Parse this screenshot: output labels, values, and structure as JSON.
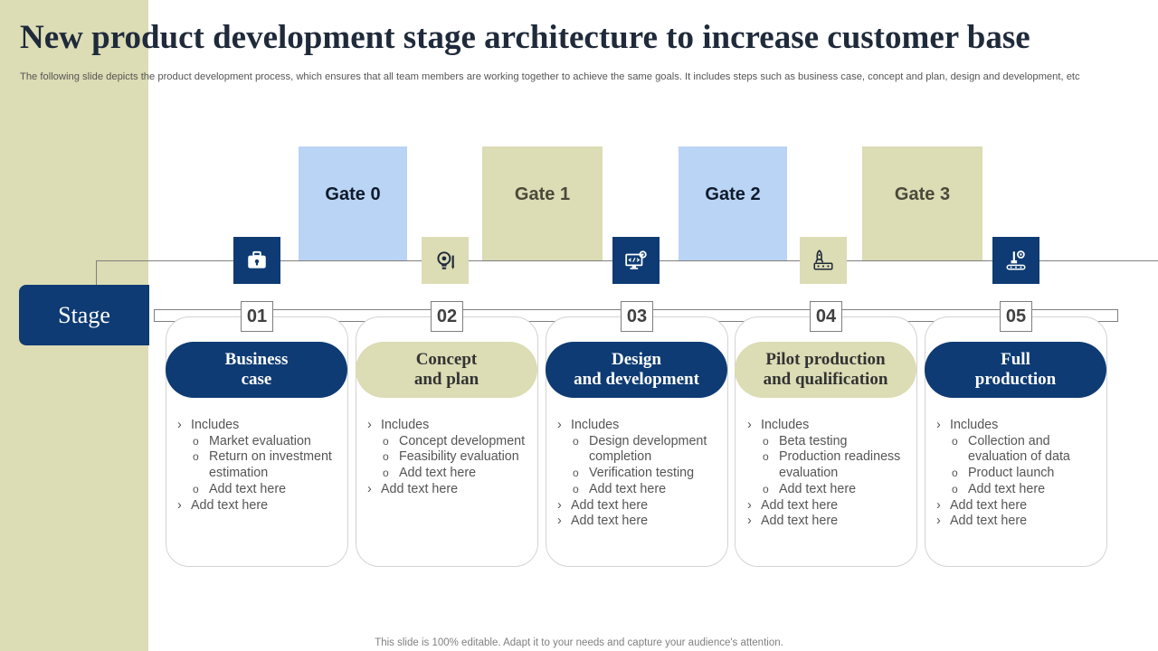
{
  "title": "New product development stage architecture to increase customer base",
  "subtitle": "The following slide depicts the product development process, which ensures that all team members are working together to achieve the same goals. It includes steps such as business case, concept and plan, design and development, etc",
  "stage_label": "Stage",
  "gates": [
    {
      "label": "Gate 0",
      "color": "#b9d4f5"
    },
    {
      "label": "Gate 1",
      "color": "#dcdcb5"
    },
    {
      "label": "Gate 2",
      "color": "#b9d4f5"
    },
    {
      "label": "Gate 3",
      "color": "#dcdcb5"
    }
  ],
  "stages": [
    {
      "number": "01",
      "title": "Business\ncase",
      "icon": "briefcase-icon",
      "theme": "navy",
      "items": [
        {
          "level": 1,
          "text": "Includes"
        },
        {
          "level": 2,
          "text": "Market evaluation"
        },
        {
          "level": 2,
          "text": "Return on investment estimation"
        },
        {
          "level": 2,
          "text": "Add text here"
        },
        {
          "level": 1,
          "text": "Add text here"
        }
      ]
    },
    {
      "number": "02",
      "title": "Concept\nand plan",
      "icon": "lightbulb-gear-icon",
      "theme": "olive",
      "items": [
        {
          "level": 1,
          "text": "Includes"
        },
        {
          "level": 2,
          "text": "Concept development"
        },
        {
          "level": 2,
          "text": "Feasibility evaluation"
        },
        {
          "level": 2,
          "text": "Add text here"
        },
        {
          "level": 1,
          "text": "Add text here"
        }
      ]
    },
    {
      "number": "03",
      "title": "Design\nand development",
      "icon": "monitor-code-icon",
      "theme": "navy",
      "items": [
        {
          "level": 1,
          "text": "Includes"
        },
        {
          "level": 2,
          "text": "Design development completion"
        },
        {
          "level": 2,
          "text": "Verification testing"
        },
        {
          "level": 2,
          "text": "Add text here"
        },
        {
          "level": 1,
          "text": "Add text here"
        },
        {
          "level": 1,
          "text": "Add text here"
        }
      ]
    },
    {
      "number": "04",
      "title": "Pilot production\nand qualification",
      "icon": "rocket-circuit-icon",
      "theme": "olive",
      "items": [
        {
          "level": 1,
          "text": "Includes"
        },
        {
          "level": 2,
          "text": "Beta testing"
        },
        {
          "level": 2,
          "text": "Production readiness evaluation"
        },
        {
          "level": 2,
          "text": "Add text here"
        },
        {
          "level": 1,
          "text": "Add text here"
        },
        {
          "level": 1,
          "text": "Add text here"
        }
      ]
    },
    {
      "number": "05",
      "title": "Full\nproduction",
      "icon": "conveyor-gear-icon",
      "theme": "navy",
      "items": [
        {
          "level": 1,
          "text": "Includes"
        },
        {
          "level": 2,
          "text": "Collection and evaluation of data"
        },
        {
          "level": 2,
          "text": "Product launch"
        },
        {
          "level": 2,
          "text": "Add text here"
        },
        {
          "level": 1,
          "text": "Add text here"
        },
        {
          "level": 1,
          "text": "Add text here"
        }
      ]
    }
  ],
  "footer": "This slide is 100% editable. Adapt it to your needs and capture your audience's attention."
}
